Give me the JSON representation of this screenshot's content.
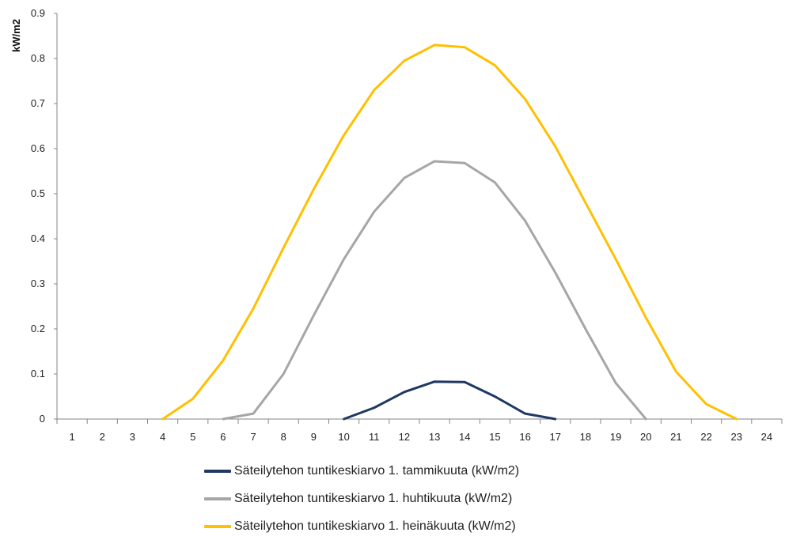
{
  "chart_data": {
    "type": "line",
    "title": "",
    "xlabel": "",
    "ylabel": "kW/m2",
    "ylim": [
      0,
      0.9
    ],
    "yticks": [
      "0",
      "0.1",
      "0.2",
      "0.3",
      "0.4",
      "0.5",
      "0.6",
      "0.7",
      "0.8",
      "0.9"
    ],
    "categories": [
      "1",
      "2",
      "3",
      "4",
      "5",
      "6",
      "7",
      "8",
      "9",
      "10",
      "11",
      "12",
      "13",
      "14",
      "15",
      "16",
      "17",
      "18",
      "19",
      "20",
      "21",
      "22",
      "23",
      "24"
    ],
    "grid": false,
    "legend_position": "bottom",
    "series": [
      {
        "name": "Säteilytehon tuntikeskiarvo 1. tammikuuta (kW/m2)",
        "color": "#1f3864",
        "points": [
          [
            10,
            0
          ],
          [
            11,
            0.025
          ],
          [
            12,
            0.06
          ],
          [
            13,
            0.083
          ],
          [
            14,
            0.082
          ],
          [
            15,
            0.05
          ],
          [
            16,
            0.012
          ],
          [
            17,
            0
          ]
        ]
      },
      {
        "name": "Säteilytehon tuntikeskiarvo 1. huhtikuuta (kW/m2)",
        "color": "#a6a6a6",
        "points": [
          [
            6,
            0
          ],
          [
            7,
            0.012
          ],
          [
            8,
            0.1
          ],
          [
            9,
            0.23
          ],
          [
            10,
            0.355
          ],
          [
            11,
            0.46
          ],
          [
            12,
            0.535
          ],
          [
            13,
            0.572
          ],
          [
            14,
            0.568
          ],
          [
            15,
            0.525
          ],
          [
            16,
            0.44
          ],
          [
            17,
            0.325
          ],
          [
            18,
            0.2
          ],
          [
            19,
            0.08
          ],
          [
            20,
            0
          ]
        ]
      },
      {
        "name": "Säteilytehon tuntikeskiarvo 1. heinäkuuta (kW/m2)",
        "color": "#ffc000",
        "points": [
          [
            4,
            0
          ],
          [
            5,
            0.045
          ],
          [
            6,
            0.13
          ],
          [
            7,
            0.245
          ],
          [
            8,
            0.38
          ],
          [
            9,
            0.51
          ],
          [
            10,
            0.63
          ],
          [
            11,
            0.73
          ],
          [
            12,
            0.795
          ],
          [
            13,
            0.83
          ],
          [
            14,
            0.825
          ],
          [
            15,
            0.785
          ],
          [
            16,
            0.71
          ],
          [
            17,
            0.605
          ],
          [
            18,
            0.48
          ],
          [
            19,
            0.355
          ],
          [
            20,
            0.225
          ],
          [
            21,
            0.105
          ],
          [
            22,
            0.033
          ],
          [
            23,
            0
          ]
        ]
      }
    ]
  }
}
